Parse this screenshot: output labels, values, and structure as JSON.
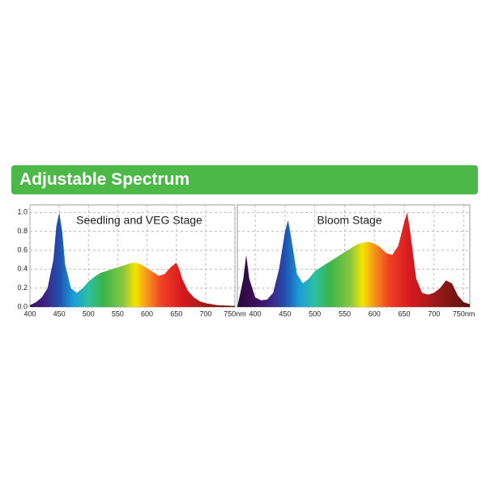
{
  "banner": {
    "title": "Adjustable Spectrum"
  },
  "chart_data": [
    {
      "type": "area",
      "title": "Seedling and VEG Stage",
      "x": [
        400,
        410,
        420,
        430,
        440,
        445,
        450,
        455,
        460,
        470,
        480,
        490,
        500,
        510,
        520,
        530,
        540,
        550,
        560,
        570,
        580,
        590,
        600,
        610,
        620,
        630,
        640,
        650,
        655,
        660,
        670,
        680,
        690,
        700,
        720,
        750
      ],
      "values": [
        0.02,
        0.05,
        0.1,
        0.2,
        0.5,
        0.85,
        1.0,
        0.8,
        0.45,
        0.2,
        0.15,
        0.2,
        0.27,
        0.32,
        0.36,
        0.38,
        0.4,
        0.42,
        0.44,
        0.46,
        0.47,
        0.45,
        0.41,
        0.37,
        0.33,
        0.35,
        0.42,
        0.47,
        0.4,
        0.3,
        0.17,
        0.1,
        0.06,
        0.04,
        0.02,
        0.01
      ],
      "xlim": [
        400,
        750
      ],
      "ylim": [
        0,
        1.08
      ],
      "xticks": [
        400,
        450,
        500,
        550,
        600,
        650,
        700,
        {
          "value": 750,
          "label": "750nm"
        }
      ],
      "yticks": [
        {
          "value": 0,
          "label": "0.0"
        },
        0.2,
        0.4,
        0.6,
        0.8,
        {
          "value": 1,
          "label": "1.0"
        }
      ],
      "ytick_labels": true,
      "grid": true
    },
    {
      "type": "area",
      "title": "Bloom Stage",
      "x": [
        370,
        380,
        385,
        390,
        400,
        410,
        420,
        430,
        440,
        450,
        455,
        460,
        470,
        480,
        490,
        500,
        510,
        520,
        530,
        540,
        550,
        560,
        570,
        580,
        590,
        600,
        610,
        620,
        630,
        640,
        650,
        655,
        660,
        670,
        680,
        690,
        700,
        710,
        720,
        730,
        740,
        750,
        760
      ],
      "values": [
        0.0,
        0.3,
        0.55,
        0.3,
        0.1,
        0.07,
        0.08,
        0.15,
        0.4,
        0.8,
        0.92,
        0.75,
        0.35,
        0.25,
        0.3,
        0.38,
        0.42,
        0.46,
        0.5,
        0.54,
        0.58,
        0.62,
        0.66,
        0.68,
        0.69,
        0.67,
        0.63,
        0.57,
        0.55,
        0.65,
        0.9,
        1.0,
        0.8,
        0.3,
        0.15,
        0.13,
        0.15,
        0.2,
        0.28,
        0.25,
        0.12,
        0.05,
        0.03
      ],
      "xlim": [
        370,
        760
      ],
      "ylim": [
        0,
        1.08
      ],
      "xticks": [
        400,
        450,
        500,
        550,
        600,
        650,
        700,
        {
          "value": 750,
          "label": "750nm"
        }
      ],
      "yticks": [
        0,
        0.2,
        0.4,
        0.6,
        0.8,
        1
      ],
      "ytick_labels": false,
      "grid": true
    }
  ]
}
